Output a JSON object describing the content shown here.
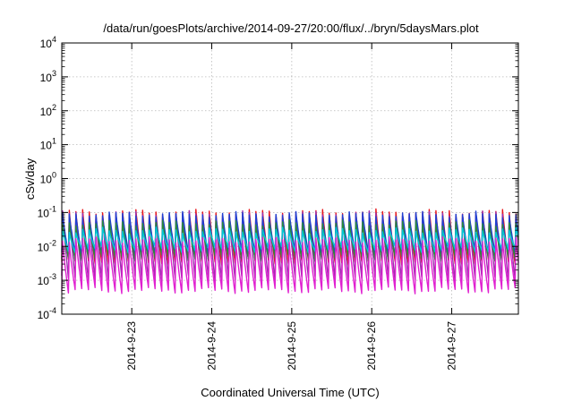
{
  "chart_data": {
    "type": "line",
    "title": "/data/run/goesPlots/archive/2014-09-27/20:00/flux/../bryn/5daysMars.plot",
    "xlabel": "Coordinated Universal Time (UTC)",
    "ylabel": "cSv/day",
    "yscale": "log",
    "ylim": [
      0.0001,
      10000
    ],
    "xlim": [
      "2014-09-22T03:00",
      "2014-09-27T20:00"
    ],
    "grid": true,
    "y_ticks": [
      {
        "base": "10",
        "exp": "-4"
      },
      {
        "base": "10",
        "exp": "-3"
      },
      {
        "base": "10",
        "exp": "-2"
      },
      {
        "base": "10",
        "exp": "-1"
      },
      {
        "base": "10",
        "exp": "0"
      },
      {
        "base": "10",
        "exp": "1"
      },
      {
        "base": "10",
        "exp": "2"
      },
      {
        "base": "10",
        "exp": "3"
      },
      {
        "base": "10",
        "exp": "4"
      }
    ],
    "x_ticks": [
      {
        "label": "2014-9-23",
        "date": "2014-09-23T00:00"
      },
      {
        "label": "2014-9-24",
        "date": "2014-09-24T00:00"
      },
      {
        "label": "2014-9-25",
        "date": "2014-09-25T00:00"
      },
      {
        "label": "2014-9-26",
        "date": "2014-09-26T00:00"
      },
      {
        "label": "2014-9-27",
        "date": "2014-09-27T00:00"
      }
    ],
    "cycle_hours": 2,
    "series": [
      {
        "color": "#e8161a",
        "peak": 0.105,
        "trough": 0.0035
      },
      {
        "color": "#9b2fae",
        "peak": 0.095,
        "trough": 0.0011
      },
      {
        "color": "#1f3fd1",
        "peak": 0.09,
        "trough": 0.006
      },
      {
        "color": "#2a8a3a",
        "peak": 0.05,
        "trough": 0.0045
      },
      {
        "color": "#00c8d8",
        "peak": 0.03,
        "trough": 0.008
      },
      {
        "color": "#e020d0",
        "peak": 0.016,
        "trough": 0.0005
      }
    ]
  }
}
